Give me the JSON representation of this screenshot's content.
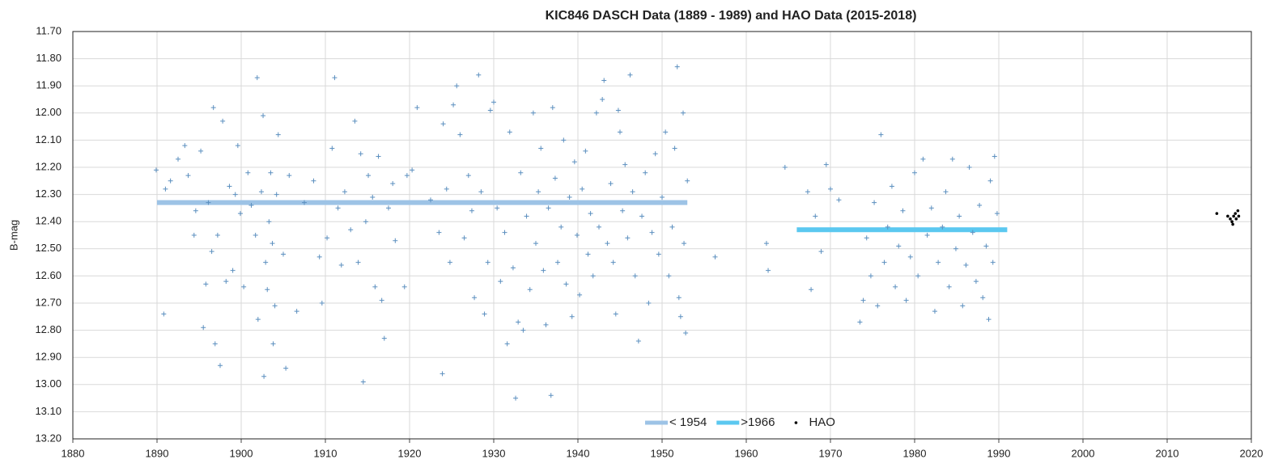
{
  "chart_data": {
    "type": "scatter",
    "title": "KIC846 DASCH Data (1889 - 1989) and HAO Data (2015-2018)",
    "y_label": "B-mag",
    "xlim": [
      1880,
      2020
    ],
    "xticks": [
      1880,
      1890,
      1900,
      1910,
      1920,
      1930,
      1940,
      1950,
      1960,
      1970,
      1980,
      1990,
      2000,
      2010,
      2020
    ],
    "ylim": [
      11.7,
      13.2
    ],
    "y_inverted": true,
    "yticks": [
      {
        "value": 11.7,
        "label": "11.70"
      },
      {
        "value": 11.8,
        "label": "11.80"
      },
      {
        "value": 11.9,
        "label": "11.90"
      },
      {
        "value": 12.0,
        "label": "12.00"
      },
      {
        "value": 12.1,
        "label": "12.10"
      },
      {
        "value": 12.2,
        "label": "12.20"
      },
      {
        "value": 12.3,
        "label": "12.30"
      },
      {
        "value": 12.4,
        "label": "12.40"
      },
      {
        "value": 12.5,
        "label": "12.50"
      },
      {
        "value": 12.6,
        "label": "12.60"
      },
      {
        "value": 12.7,
        "label": "12.70"
      },
      {
        "value": 12.8,
        "label": "12.80"
      },
      {
        "value": 12.9,
        "label": "12.90"
      },
      {
        "value": 13.0,
        "label": "13.00"
      },
      {
        "value": 13.1,
        "label": "13.10"
      },
      {
        "value": 13.2,
        "label": "13.20"
      }
    ],
    "grid": true,
    "legend": "lower center",
    "series": [
      {
        "name": "< 1954",
        "type": "line",
        "color": "#9dc3e6",
        "x": [
          1890,
          1953
        ],
        "values": [
          12.33,
          12.33
        ]
      },
      {
        "name": ">1966",
        "type": "line",
        "color": "#5bc8f0",
        "x": [
          1966,
          1991
        ],
        "values": [
          12.43,
          12.43
        ]
      },
      {
        "type": "scatter",
        "marker": "plus",
        "color": "#5b8fbf",
        "x": [
          1889.9,
          1890.8,
          1891.0,
          1891.6,
          1892.5,
          1893.3,
          1893.7,
          1894.4,
          1894.6,
          1895.2,
          1895.5,
          1895.8,
          1896.1,
          1896.5,
          1896.7,
          1896.9,
          1897.2,
          1897.5,
          1897.8,
          1898.2,
          1898.6,
          1899.0,
          1899.3,
          1899.6,
          1899.9,
          1900.3,
          1900.8,
          1901.2,
          1901.7,
          1901.9,
          1902.0,
          1902.4,
          1902.6,
          1902.7,
          1902.9,
          1903.1,
          1903.3,
          1903.5,
          1903.7,
          1903.8,
          1904.0,
          1904.2,
          1904.4,
          1905.0,
          1905.3,
          1905.7,
          1906.6,
          1907.5,
          1908.6,
          1909.3,
          1909.6,
          1910.2,
          1910.8,
          1911.1,
          1911.5,
          1911.9,
          1912.3,
          1913.0,
          1913.5,
          1913.9,
          1914.2,
          1914.5,
          1914.8,
          1915.1,
          1915.6,
          1915.9,
          1916.3,
          1916.7,
          1917.0,
          1917.5,
          1918.0,
          1918.3,
          1919.4,
          1919.7,
          1920.3,
          1920.9,
          1922.5,
          1923.5,
          1923.9,
          1924.0,
          1924.4,
          1924.8,
          1925.2,
          1925.6,
          1926.0,
          1926.5,
          1927.0,
          1927.4,
          1927.7,
          1928.2,
          1928.5,
          1928.9,
          1929.3,
          1929.6,
          1930.0,
          1930.4,
          1930.8,
          1931.3,
          1931.6,
          1931.9,
          1932.3,
          1932.6,
          1932.9,
          1933.2,
          1933.5,
          1933.9,
          1934.3,
          1934.7,
          1935.0,
          1935.3,
          1935.6,
          1935.9,
          1936.2,
          1936.5,
          1936.8,
          1937.0,
          1937.3,
          1937.6,
          1938.0,
          1938.3,
          1938.6,
          1939.0,
          1939.3,
          1939.6,
          1939.9,
          1940.2,
          1940.5,
          1940.9,
          1941.2,
          1941.5,
          1941.8,
          1942.2,
          1942.5,
          1942.9,
          1943.1,
          1943.5,
          1943.9,
          1944.2,
          1944.5,
          1944.8,
          1945.0,
          1945.3,
          1945.6,
          1945.9,
          1946.2,
          1946.5,
          1946.8,
          1947.2,
          1947.6,
          1948.0,
          1948.4,
          1948.8,
          1949.2,
          1949.6,
          1950.0,
          1950.4,
          1950.8,
          1951.2,
          1951.5,
          1951.8,
          1952.0,
          1952.2,
          1952.5,
          1952.6,
          1952.8,
          1953.0,
          1956.3,
          1962.4,
          1962.6,
          1964.6,
          1967.3,
          1967.7,
          1968.2,
          1968.9,
          1969.5,
          1970.0,
          1971.0,
          1973.5,
          1973.9,
          1974.3,
          1974.8,
          1975.2,
          1975.6,
          1976.0,
          1976.4,
          1976.8,
          1977.3,
          1977.7,
          1978.1,
          1978.6,
          1979.0,
          1979.5,
          1980.0,
          1980.4,
          1981.0,
          1981.5,
          1982.0,
          1982.4,
          1982.8,
          1983.3,
          1983.7,
          1984.1,
          1984.5,
          1984.9,
          1985.3,
          1985.7,
          1986.1,
          1986.5,
          1986.9,
          1987.3,
          1987.7,
          1988.1,
          1988.5,
          1988.8,
          1989.0,
          1989.3,
          1989.5,
          1989.8
        ],
        "values": [
          12.21,
          12.74,
          12.28,
          12.25,
          12.17,
          12.12,
          12.23,
          12.45,
          12.36,
          12.14,
          12.79,
          12.63,
          12.33,
          12.51,
          11.98,
          12.85,
          12.45,
          12.93,
          12.03,
          12.62,
          12.27,
          12.58,
          12.3,
          12.12,
          12.37,
          12.64,
          12.22,
          12.34,
          12.45,
          11.87,
          12.76,
          12.29,
          12.01,
          12.97,
          12.55,
          12.65,
          12.4,
          12.22,
          12.48,
          12.85,
          12.71,
          12.3,
          12.08,
          12.52,
          12.94,
          12.23,
          12.73,
          12.33,
          12.25,
          12.53,
          12.7,
          12.46,
          12.13,
          11.87,
          12.35,
          12.56,
          12.29,
          12.43,
          12.03,
          12.55,
          12.15,
          12.99,
          12.4,
          12.23,
          12.31,
          12.64,
          12.16,
          12.69,
          12.83,
          12.35,
          12.26,
          12.47,
          12.64,
          12.23,
          12.21,
          11.98,
          12.32,
          12.44,
          12.96,
          12.04,
          12.28,
          12.55,
          11.97,
          11.9,
          12.08,
          12.46,
          12.23,
          12.36,
          12.68,
          11.86,
          12.29,
          12.74,
          12.55,
          11.99,
          11.96,
          12.35,
          12.62,
          12.44,
          12.85,
          12.07,
          12.57,
          13.05,
          12.77,
          12.22,
          12.8,
          12.38,
          12.65,
          12.0,
          12.48,
          12.29,
          12.13,
          12.58,
          12.78,
          12.35,
          13.04,
          11.98,
          12.24,
          12.55,
          12.42,
          12.1,
          12.63,
          12.31,
          12.75,
          12.18,
          12.45,
          12.67,
          12.28,
          12.14,
          12.52,
          12.37,
          12.6,
          12.0,
          12.42,
          11.95,
          11.88,
          12.48,
          12.26,
          12.55,
          12.74,
          11.99,
          12.07,
          12.36,
          12.19,
          12.46,
          11.86,
          12.29,
          12.6,
          12.84,
          12.38,
          12.22,
          12.7,
          12.44,
          12.15,
          12.52,
          12.31,
          12.07,
          12.6,
          12.42,
          12.13,
          11.83,
          12.68,
          12.75,
          12.0,
          12.48,
          12.81,
          12.25,
          12.53,
          12.48,
          12.58,
          12.2,
          12.29,
          12.65,
          12.38,
          12.51,
          12.19,
          12.28,
          12.32,
          12.77,
          12.69,
          12.46,
          12.6,
          12.33,
          12.71,
          12.08,
          12.55,
          12.42,
          12.27,
          12.64,
          12.49,
          12.36,
          12.69,
          12.53,
          12.22,
          12.6,
          12.17,
          12.45,
          12.35,
          12.73,
          12.55,
          12.42,
          12.29,
          12.64,
          12.17,
          12.5,
          12.38,
          12.71,
          12.56,
          12.2,
          12.44,
          12.62,
          12.34,
          12.68,
          12.49,
          12.76,
          12.25,
          12.55,
          12.16,
          12.37
        ]
      },
      {
        "name": "HAO",
        "type": "scatter",
        "marker": "dot",
        "color": "#000000",
        "x": [
          2015.9,
          2017.2,
          2017.5,
          2017.7,
          2017.8,
          2017.9,
          2018.1,
          2018.2,
          2018.4,
          2018.5
        ],
        "values": [
          12.37,
          12.38,
          12.39,
          12.4,
          12.41,
          12.38,
          12.37,
          12.39,
          12.36,
          12.38
        ]
      }
    ]
  }
}
